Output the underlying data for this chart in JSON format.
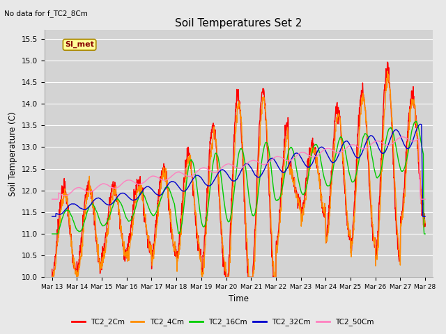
{
  "title": "Soil Temperatures Set 2",
  "subtitle": "No data for f_TC2_8Cm",
  "xlabel": "Time",
  "ylabel": "Soil Temperature (C)",
  "ylim": [
    10.0,
    15.5
  ],
  "yticks": [
    10.0,
    10.5,
    11.0,
    11.5,
    12.0,
    12.5,
    13.0,
    13.5,
    14.0,
    14.5,
    15.0,
    15.5
  ],
  "date_labels": [
    "Mar 13",
    "Mar 14",
    "Mar 15",
    "Mar 16",
    "Mar 17",
    "Mar 18",
    "Mar 19",
    "Mar 20",
    "Mar 21",
    "Mar 22",
    "Mar 23",
    "Mar 24",
    "Mar 25",
    "Mar 26",
    "Mar 27",
    "Mar 28"
  ],
  "legend_label": "SI_met",
  "series_colors": {
    "TC2_2Cm": "#ff0000",
    "TC2_4Cm": "#ff8c00",
    "TC2_16Cm": "#00cc00",
    "TC2_32Cm": "#0000cc",
    "TC2_50Cm": "#ff80c0"
  },
  "background_color": "#e8e8e8",
  "plot_bg_color": "#d3d3d3",
  "legend_box_color": "#ffff99",
  "legend_box_border": "#aa8800"
}
